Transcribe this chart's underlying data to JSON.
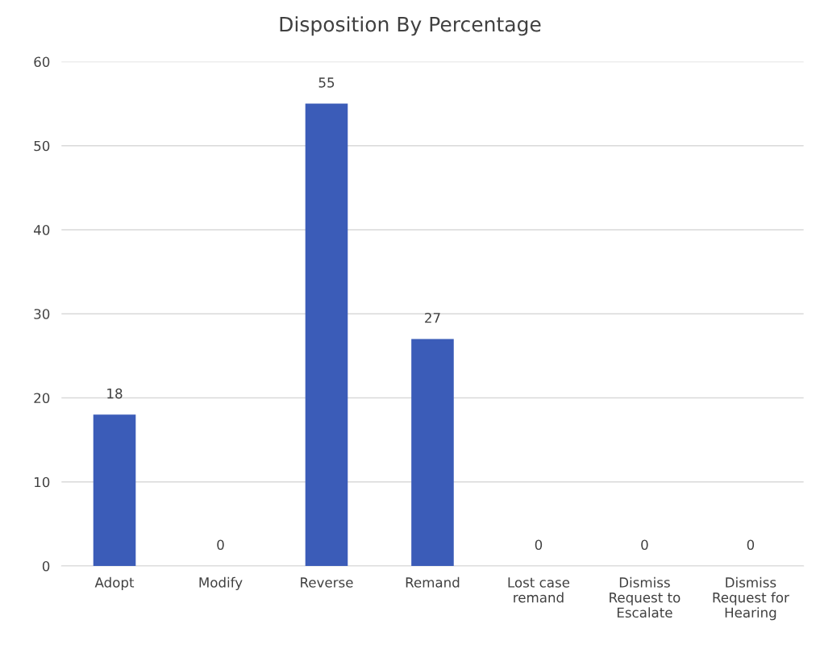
{
  "chart_data": {
    "type": "bar",
    "title": "Disposition By Percentage",
    "categories": [
      "Adopt",
      "Modify",
      "Reverse",
      "Remand",
      "Lost case\nremand",
      "Dismiss\nRequest to\nEscalate",
      "Dismiss\nRequest for\nHearing"
    ],
    "values": [
      18,
      0,
      55,
      27,
      0,
      0,
      0
    ],
    "color": "#3b5cb8",
    "ylim": [
      0,
      60
    ],
    "yticks": [
      0,
      10,
      20,
      30,
      40,
      50,
      60
    ],
    "grid": "y",
    "data_labels": true
  }
}
